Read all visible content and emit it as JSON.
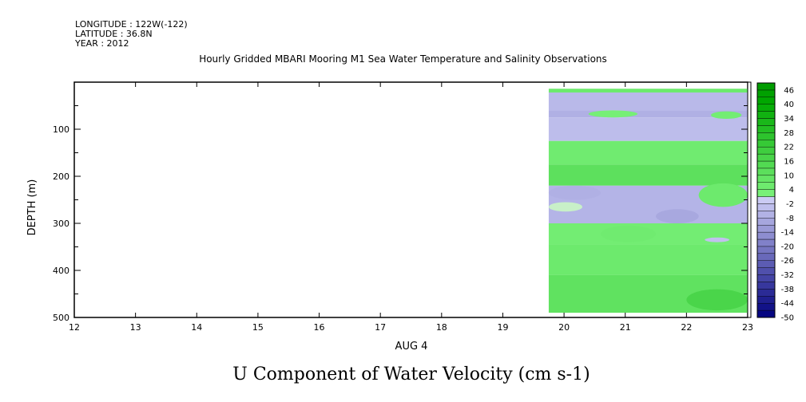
{
  "header": {
    "longitude": "LONGITUDE : 122W(-122)",
    "latitude": "LATITUDE : 36.8N",
    "year": "YEAR : 2012"
  },
  "chart_data": {
    "type": "heatmap",
    "title": "Hourly Gridded MBARI Mooring M1 Sea Water Temperature and Salinity Observations",
    "variable_title": "U Component of Water Velocity (cm s-1)",
    "xlabel": "AUG  4",
    "ylabel": "DEPTH (m)",
    "xlim": [
      12,
      23
    ],
    "ylim": [
      500,
      0
    ],
    "x_ticks": [
      12,
      13,
      14,
      15,
      16,
      17,
      18,
      19,
      20,
      21,
      22,
      23
    ],
    "y_ticks": [
      100,
      200,
      300,
      400,
      500
    ],
    "data_extent": {
      "x": [
        19.75,
        23
      ],
      "depth": [
        14,
        490
      ]
    },
    "colorbar": {
      "labels": [
        "46",
        "40",
        "34",
        "28",
        "22",
        "16",
        "10",
        "4",
        "-2",
        "-8",
        "-14",
        "-20",
        "-26",
        "-32",
        "-38",
        "-44",
        "-50"
      ],
      "range": [
        -50,
        49
      ]
    },
    "depth_bands": [
      {
        "depth": [
          14,
          22
        ],
        "value": 6
      },
      {
        "depth": [
          22,
          60
        ],
        "value": -5
      },
      {
        "depth": [
          60,
          75
        ],
        "value": -7
      },
      {
        "depth": [
          75,
          125
        ],
        "value": -4
      },
      {
        "depth": [
          125,
          175
        ],
        "value": 5
      },
      {
        "depth": [
          175,
          220
        ],
        "value": 11
      },
      {
        "depth": [
          220,
          300
        ],
        "value": -6
      },
      {
        "depth": [
          300,
          345
        ],
        "value": 4
      },
      {
        "depth": [
          345,
          410
        ],
        "value": 6
      },
      {
        "depth": [
          410,
          490
        ],
        "value": 10
      }
    ],
    "features": [
      {
        "x": [
          20.4,
          21.2
        ],
        "depth": [
          60,
          75
        ],
        "value": 3
      },
      {
        "x": [
          22.4,
          22.9
        ],
        "depth": [
          62,
          78
        ],
        "value": 4
      },
      {
        "x": [
          19.75,
          20.6
        ],
        "depth": [
          220,
          250
        ],
        "value": -7
      },
      {
        "x": [
          19.75,
          20.3
        ],
        "depth": [
          255,
          275
        ],
        "value": 2
      },
      {
        "x": [
          21.5,
          22.2
        ],
        "depth": [
          270,
          300
        ],
        "value": -9
      },
      {
        "x": [
          22.2,
          23.0
        ],
        "depth": [
          215,
          265
        ],
        "value": 6
      },
      {
        "x": [
          20.6,
          21.5
        ],
        "depth": [
          305,
          340
        ],
        "value": 5
      },
      {
        "x": [
          22.3,
          22.7
        ],
        "depth": [
          330,
          340
        ],
        "value": -3
      },
      {
        "x": [
          22.0,
          23.0
        ],
        "depth": [
          440,
          485
        ],
        "value": 17
      }
    ]
  }
}
